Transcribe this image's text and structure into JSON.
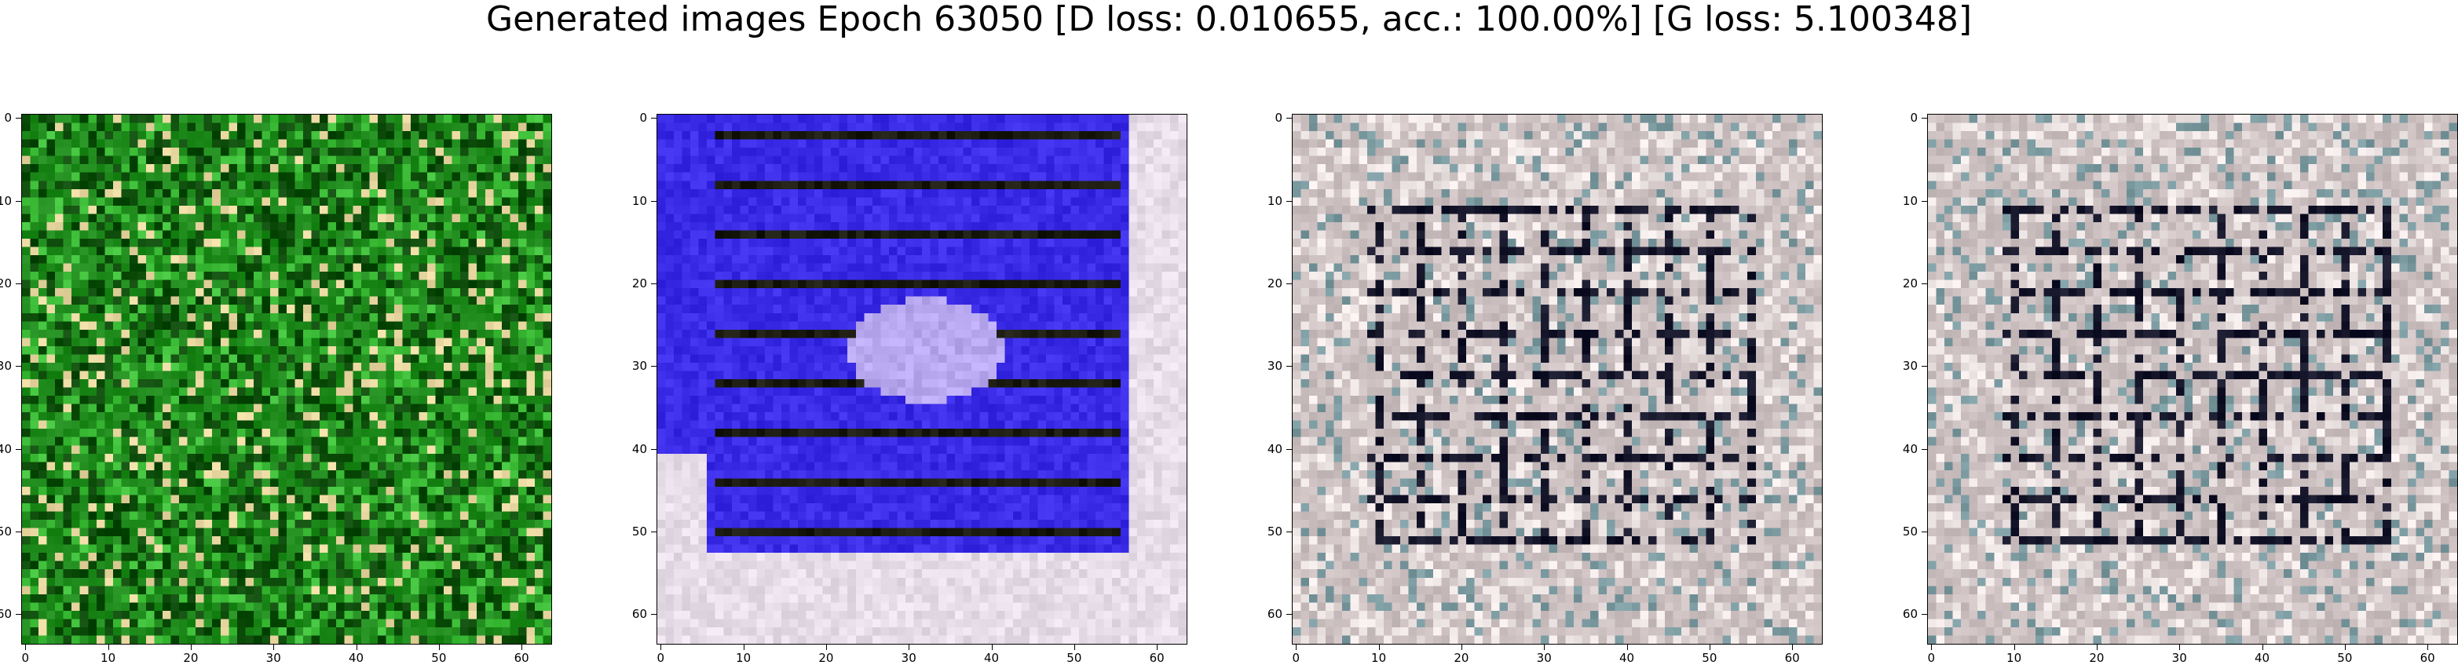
{
  "figure": {
    "title": "Generated images Epoch 63050 [D loss: 0.010655, acc.: 100.00%] [G loss: 5.100348]"
  },
  "axes": {
    "xticks": [
      "0",
      "10",
      "20",
      "30",
      "40",
      "50",
      "60"
    ],
    "yticks": [
      "0",
      "10",
      "20",
      "30",
      "40",
      "50",
      "60"
    ],
    "image_size": 64
  },
  "panels": [
    {
      "name": "green-sample",
      "base": "#1f8a1c",
      "dark": "#0b4a08",
      "light": "#e8d7a0",
      "accent": "#3fbf3a"
    },
    {
      "name": "blue-sample",
      "base": "#3a2be6",
      "dark": "#1a1a10",
      "light": "#e6dde8",
      "accent": "#b8a8f0"
    },
    {
      "name": "grey-sample-a",
      "base": "#cbbfc0",
      "dark": "#15152a",
      "light": "#efe7e6",
      "accent": "#7a9aa0"
    },
    {
      "name": "grey-sample-b",
      "base": "#cbbfc0",
      "dark": "#15152a",
      "light": "#efe7e6",
      "accent": "#7a9aa0"
    }
  ]
}
